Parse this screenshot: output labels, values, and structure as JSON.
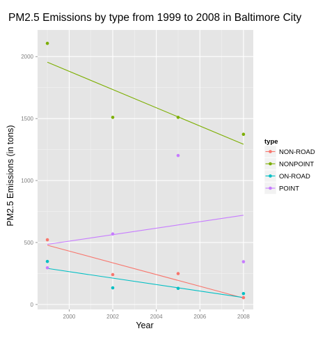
{
  "chart_data": {
    "type": "scatter",
    "title": "PM2.5 Emissions by type from 1999 to 2008 in Baltimore City",
    "xlabel": "Year",
    "ylabel": "PM2.5 Emissions (in tons)",
    "xlim": [
      1998.55,
      2008.45
    ],
    "ylim": [
      -40,
      2215
    ],
    "x_ticks": [
      2000,
      2002,
      2004,
      2006,
      2008
    ],
    "y_ticks": [
      0,
      500,
      1000,
      1500,
      2000
    ],
    "grid": true,
    "legend": {
      "title": "type",
      "placement": "right"
    },
    "series": [
      {
        "name": "NON-ROAD",
        "color": "#F8766D",
        "points": [
          [
            1999,
            522
          ],
          [
            2002,
            241
          ],
          [
            2005,
            249
          ],
          [
            2008,
            55
          ]
        ],
        "trend": [
          [
            1999,
            478
          ],
          [
            2008,
            52
          ]
        ]
      },
      {
        "name": "NONPOINT",
        "color": "#7CAE00",
        "points": [
          [
            1999,
            2107
          ],
          [
            2002,
            1510
          ],
          [
            2005,
            1510
          ],
          [
            2008,
            1373
          ]
        ],
        "trend": [
          [
            1999,
            1955
          ],
          [
            2008,
            1293
          ]
        ]
      },
      {
        "name": "ON-ROAD",
        "color": "#00BFC4",
        "points": [
          [
            1999,
            347
          ],
          [
            2002,
            134
          ],
          [
            2005,
            130
          ],
          [
            2008,
            88
          ]
        ],
        "trend": [
          [
            1999,
            291
          ],
          [
            2008,
            56
          ]
        ]
      },
      {
        "name": "POINT",
        "color": "#C77CFF",
        "points": [
          [
            1999,
            296
          ],
          [
            2002,
            569
          ],
          [
            2005,
            1202
          ],
          [
            2008,
            345
          ]
        ],
        "trend": [
          [
            1999,
            485
          ],
          [
            2008,
            720
          ]
        ]
      }
    ]
  }
}
